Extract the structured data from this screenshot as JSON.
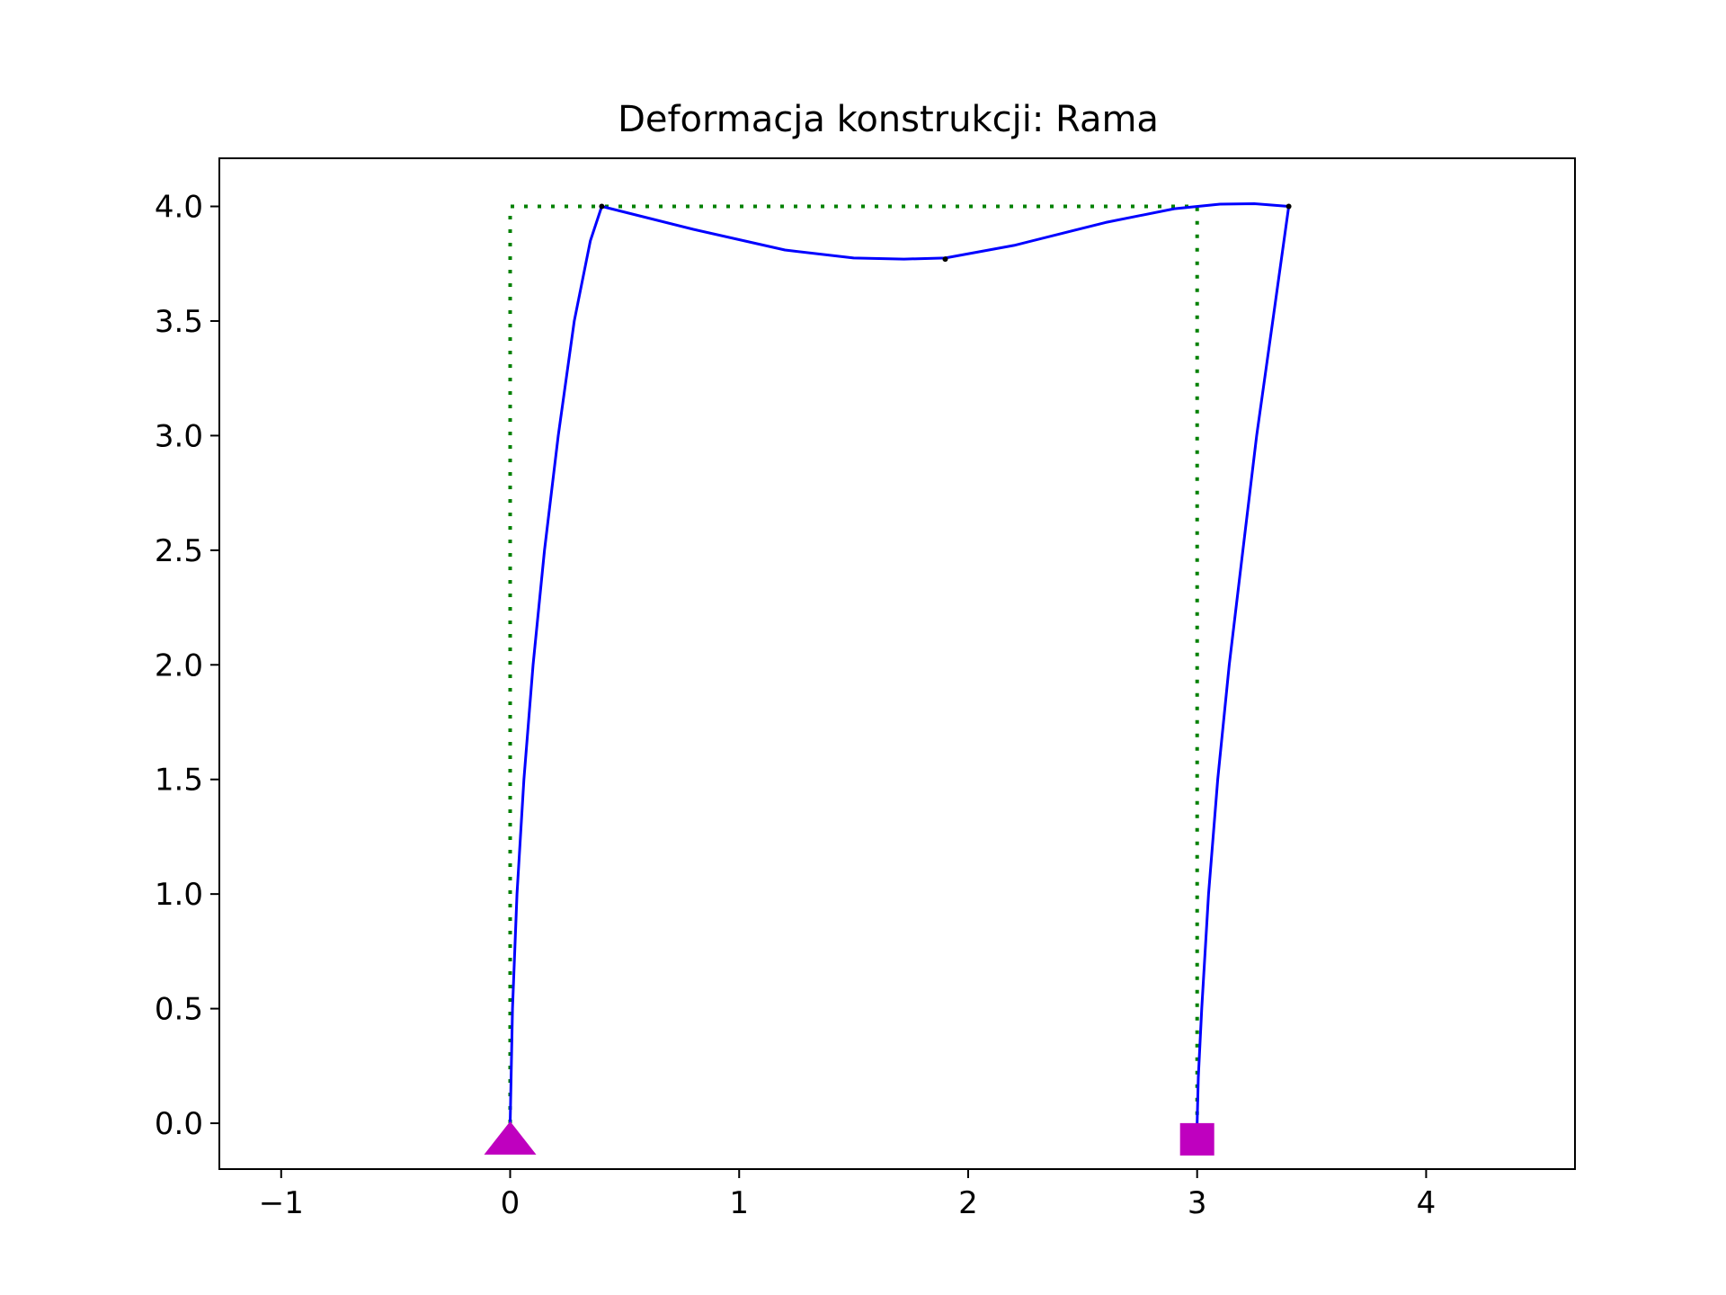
{
  "chart_data": {
    "type": "line",
    "title": "Deformacja konstrukcji: Rama",
    "xlabel": "",
    "ylabel": "",
    "xlim": [
      -1.27,
      4.65
    ],
    "ylim": [
      -0.2,
      4.21
    ],
    "x_ticks": [
      {
        "value": -1,
        "label": "−1"
      },
      {
        "value": 0,
        "label": "0"
      },
      {
        "value": 1,
        "label": "1"
      },
      {
        "value": 2,
        "label": "2"
      },
      {
        "value": 3,
        "label": "3"
      },
      {
        "value": 4,
        "label": "4"
      }
    ],
    "y_ticks": [
      {
        "value": 0.0,
        "label": "0.0"
      },
      {
        "value": 0.5,
        "label": "0.5"
      },
      {
        "value": 1.0,
        "label": "1.0"
      },
      {
        "value": 1.5,
        "label": "1.5"
      },
      {
        "value": 2.0,
        "label": "2.0"
      },
      {
        "value": 2.5,
        "label": "2.5"
      },
      {
        "value": 3.0,
        "label": "3.0"
      },
      {
        "value": 3.5,
        "label": "3.5"
      },
      {
        "value": 4.0,
        "label": "4.0"
      }
    ],
    "grid": false,
    "legend": "none",
    "series": [
      {
        "color": "#008000",
        "style": "dotted",
        "x": [
          0,
          0,
          3,
          3
        ],
        "y": [
          0,
          4,
          4,
          0
        ]
      },
      {
        "color": "#0000ff",
        "style": "solid",
        "segments": [
          {
            "x": [
              0,
              0.01,
              0.03,
              0.06,
              0.1,
              0.15,
              0.21,
              0.28,
              0.35,
              0.4
            ],
            "y": [
              0,
              0.5,
              1.0,
              1.5,
              2.0,
              2.5,
              3.0,
              3.5,
              3.85,
              4.0
            ]
          },
          {
            "x": [
              0.4,
              0.8,
              1.2,
              1.5,
              1.72,
              1.9,
              2.2,
              2.6,
              2.9,
              3.1,
              3.25,
              3.4
            ],
            "y": [
              4.0,
              3.9,
              3.81,
              3.775,
              3.77,
              3.775,
              3.83,
              3.93,
              3.99,
              4.01,
              4.012,
              4.0
            ]
          },
          {
            "x": [
              3.4,
              3.33,
              3.26,
              3.2,
              3.14,
              3.09,
              3.05,
              3.02,
              3.005,
              3.0
            ],
            "y": [
              4.0,
              3.5,
              3.0,
              2.5,
              2.0,
              1.5,
              1.0,
              0.5,
              0.2,
              0
            ]
          }
        ]
      }
    ],
    "nodes": [
      {
        "x": 0.4,
        "y": 4.0
      },
      {
        "x": 1.9,
        "y": 3.77
      },
      {
        "x": 3.4,
        "y": 4.0
      }
    ],
    "supports": [
      {
        "type": "triangle",
        "x": 0,
        "y": -0.07,
        "color": "#bf00bf"
      },
      {
        "type": "square",
        "x": 3,
        "y": -0.07,
        "color": "#bf00bf"
      }
    ]
  }
}
